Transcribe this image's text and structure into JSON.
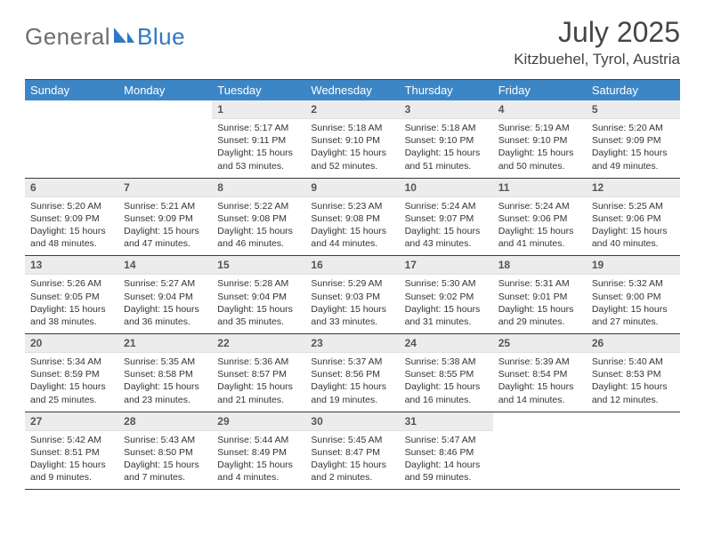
{
  "logo": {
    "general": "General",
    "blue": "Blue",
    "shape_color": "#2f78c3"
  },
  "header": {
    "month": "July 2025",
    "location": "Kitzbuehel, Tyrol, Austria"
  },
  "colors": {
    "header_bg": "#3d86c6",
    "header_fg": "#ffffff",
    "daynum_bg": "#ececec",
    "border": "#3b3b3b"
  },
  "weekdays": [
    "Sunday",
    "Monday",
    "Tuesday",
    "Wednesday",
    "Thursday",
    "Friday",
    "Saturday"
  ],
  "weeks": [
    [
      null,
      null,
      {
        "n": "1",
        "sr": "5:17 AM",
        "ss": "9:11 PM",
        "dl": "15 hours and 53 minutes."
      },
      {
        "n": "2",
        "sr": "5:18 AM",
        "ss": "9:10 PM",
        "dl": "15 hours and 52 minutes."
      },
      {
        "n": "3",
        "sr": "5:18 AM",
        "ss": "9:10 PM",
        "dl": "15 hours and 51 minutes."
      },
      {
        "n": "4",
        "sr": "5:19 AM",
        "ss": "9:10 PM",
        "dl": "15 hours and 50 minutes."
      },
      {
        "n": "5",
        "sr": "5:20 AM",
        "ss": "9:09 PM",
        "dl": "15 hours and 49 minutes."
      }
    ],
    [
      {
        "n": "6",
        "sr": "5:20 AM",
        "ss": "9:09 PM",
        "dl": "15 hours and 48 minutes."
      },
      {
        "n": "7",
        "sr": "5:21 AM",
        "ss": "9:09 PM",
        "dl": "15 hours and 47 minutes."
      },
      {
        "n": "8",
        "sr": "5:22 AM",
        "ss": "9:08 PM",
        "dl": "15 hours and 46 minutes."
      },
      {
        "n": "9",
        "sr": "5:23 AM",
        "ss": "9:08 PM",
        "dl": "15 hours and 44 minutes."
      },
      {
        "n": "10",
        "sr": "5:24 AM",
        "ss": "9:07 PM",
        "dl": "15 hours and 43 minutes."
      },
      {
        "n": "11",
        "sr": "5:24 AM",
        "ss": "9:06 PM",
        "dl": "15 hours and 41 minutes."
      },
      {
        "n": "12",
        "sr": "5:25 AM",
        "ss": "9:06 PM",
        "dl": "15 hours and 40 minutes."
      }
    ],
    [
      {
        "n": "13",
        "sr": "5:26 AM",
        "ss": "9:05 PM",
        "dl": "15 hours and 38 minutes."
      },
      {
        "n": "14",
        "sr": "5:27 AM",
        "ss": "9:04 PM",
        "dl": "15 hours and 36 minutes."
      },
      {
        "n": "15",
        "sr": "5:28 AM",
        "ss": "9:04 PM",
        "dl": "15 hours and 35 minutes."
      },
      {
        "n": "16",
        "sr": "5:29 AM",
        "ss": "9:03 PM",
        "dl": "15 hours and 33 minutes."
      },
      {
        "n": "17",
        "sr": "5:30 AM",
        "ss": "9:02 PM",
        "dl": "15 hours and 31 minutes."
      },
      {
        "n": "18",
        "sr": "5:31 AM",
        "ss": "9:01 PM",
        "dl": "15 hours and 29 minutes."
      },
      {
        "n": "19",
        "sr": "5:32 AM",
        "ss": "9:00 PM",
        "dl": "15 hours and 27 minutes."
      }
    ],
    [
      {
        "n": "20",
        "sr": "5:34 AM",
        "ss": "8:59 PM",
        "dl": "15 hours and 25 minutes."
      },
      {
        "n": "21",
        "sr": "5:35 AM",
        "ss": "8:58 PM",
        "dl": "15 hours and 23 minutes."
      },
      {
        "n": "22",
        "sr": "5:36 AM",
        "ss": "8:57 PM",
        "dl": "15 hours and 21 minutes."
      },
      {
        "n": "23",
        "sr": "5:37 AM",
        "ss": "8:56 PM",
        "dl": "15 hours and 19 minutes."
      },
      {
        "n": "24",
        "sr": "5:38 AM",
        "ss": "8:55 PM",
        "dl": "15 hours and 16 minutes."
      },
      {
        "n": "25",
        "sr": "5:39 AM",
        "ss": "8:54 PM",
        "dl": "15 hours and 14 minutes."
      },
      {
        "n": "26",
        "sr": "5:40 AM",
        "ss": "8:53 PM",
        "dl": "15 hours and 12 minutes."
      }
    ],
    [
      {
        "n": "27",
        "sr": "5:42 AM",
        "ss": "8:51 PM",
        "dl": "15 hours and 9 minutes."
      },
      {
        "n": "28",
        "sr": "5:43 AM",
        "ss": "8:50 PM",
        "dl": "15 hours and 7 minutes."
      },
      {
        "n": "29",
        "sr": "5:44 AM",
        "ss": "8:49 PM",
        "dl": "15 hours and 4 minutes."
      },
      {
        "n": "30",
        "sr": "5:45 AM",
        "ss": "8:47 PM",
        "dl": "15 hours and 2 minutes."
      },
      {
        "n": "31",
        "sr": "5:47 AM",
        "ss": "8:46 PM",
        "dl": "14 hours and 59 minutes."
      },
      null,
      null
    ]
  ],
  "labels": {
    "sunrise": "Sunrise: ",
    "sunset": "Sunset: ",
    "daylight": "Daylight: "
  }
}
